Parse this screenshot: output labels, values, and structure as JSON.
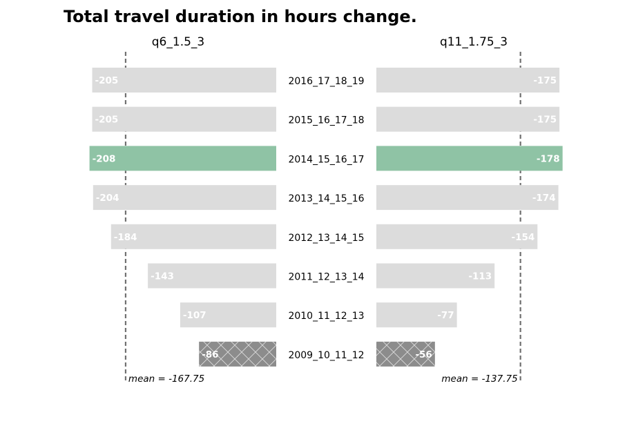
{
  "chart_data": {
    "type": "bar",
    "orientation": "horizontal",
    "title": "Total travel duration in hours change.",
    "categories": [
      "2016_17_18_19",
      "2015_16_17_18",
      "2014_15_16_17",
      "2013_14_15_16",
      "2012_13_14_15",
      "2011_12_13_14",
      "2010_11_12_13",
      "2009_10_11_12"
    ],
    "series": [
      {
        "name": "q6_1.5_3",
        "side": "left",
        "values": [
          -205,
          -205,
          -208,
          -204,
          -184,
          -143,
          -107,
          -86
        ],
        "value_labels": [
          "-205",
          "-205",
          "-208",
          "-204",
          "-184",
          "-143",
          "-107",
          "-86"
        ],
        "mean": -167.75,
        "mean_label": "mean = -167.75"
      },
      {
        "name": "q11_1.75_3",
        "side": "right",
        "values": [
          -175,
          -175,
          -178,
          -174,
          -154,
          -113,
          -77,
          -56
        ],
        "value_labels": [
          "-175",
          "-175",
          "-178",
          "-174",
          "-154",
          "-113",
          "-77",
          "-56"
        ],
        "mean": -137.75,
        "mean_label": "mean = -137.75"
      }
    ],
    "highlight_category": "2014_15_16_17",
    "hatched_category": "2009_10_11_12",
    "colors": {
      "default_bar": "#dcdcdc",
      "highlight_bar": "#8fc3a5",
      "hatched_bar": "#8c8c8c",
      "mean_line": "#707070",
      "value_text": "#ffffff"
    },
    "grid": false
  }
}
